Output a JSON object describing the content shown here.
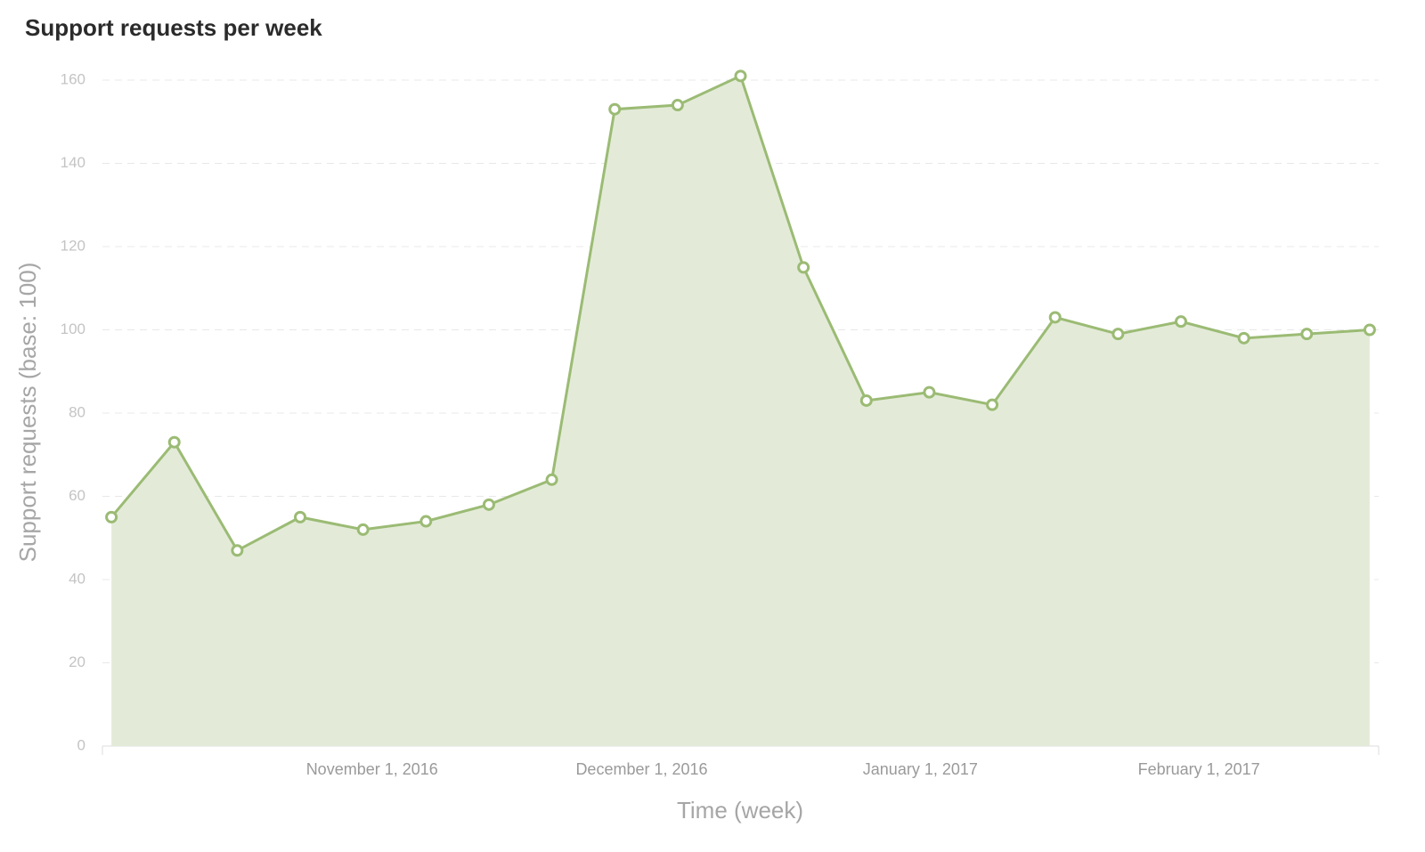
{
  "chart_data": {
    "type": "area",
    "title": "Support requests per week",
    "x_label": "Time (week)",
    "y_label": "Support requests (base: 100)",
    "x": [
      "2016-10-03",
      "2016-10-10",
      "2016-10-17",
      "2016-10-24",
      "2016-10-31",
      "2016-11-07",
      "2016-11-14",
      "2016-11-21",
      "2016-11-28",
      "2016-12-05",
      "2016-12-12",
      "2016-12-19",
      "2016-12-26",
      "2017-01-02",
      "2017-01-09",
      "2017-01-16",
      "2017-01-23",
      "2017-01-30",
      "2017-02-06",
      "2017-02-13",
      "2017-02-20"
    ],
    "values": [
      55,
      73,
      47,
      55,
      52,
      54,
      58,
      64,
      153,
      154,
      161,
      115,
      83,
      85,
      82,
      103,
      99,
      102,
      98,
      99,
      100
    ],
    "color": "#9bbb74",
    "fill_color": "#e3ebd8",
    "xlim": [
      "2016-10-02",
      "2017-02-21"
    ],
    "xticks": [
      {
        "value": "2016-11-01",
        "label": "November 1, 2016"
      },
      {
        "value": "2016-12-01",
        "label": "December 1, 2016"
      },
      {
        "value": "2017-01-01",
        "label": "January 1, 2017"
      },
      {
        "value": "2017-02-01",
        "label": "February 1, 2017"
      }
    ],
    "ylim": [
      0,
      160
    ],
    "yticks": [
      0,
      20,
      40,
      60,
      80,
      100,
      120,
      140,
      160
    ],
    "grid": true
  }
}
